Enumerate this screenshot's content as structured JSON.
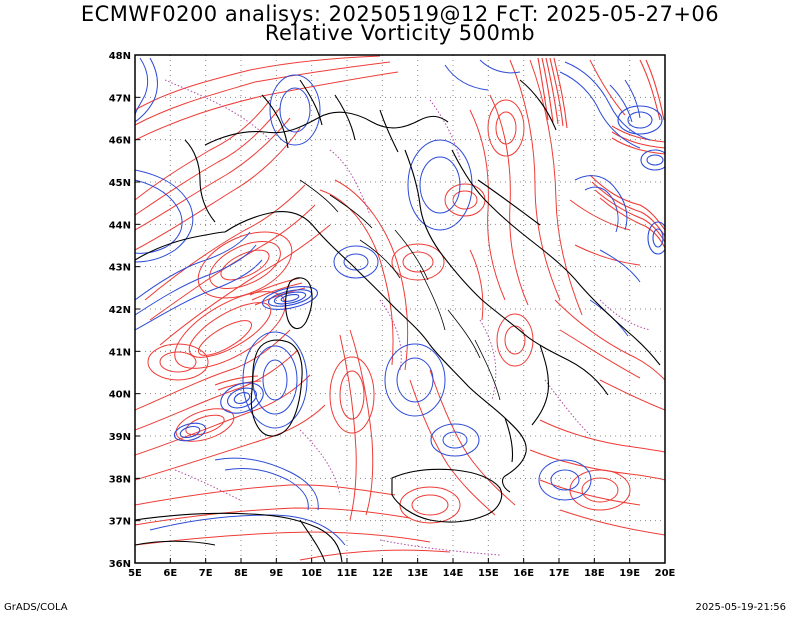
{
  "header": {
    "title_line1": "ECMWF0200 analisys: 20250519@12 FcT: 2025-05-27+06",
    "title_line2": "Relative Vorticity 500mb"
  },
  "axes": {
    "lon_labels": [
      "5E",
      "6E",
      "7E",
      "8E",
      "9E",
      "10E",
      "11E",
      "12E",
      "13E",
      "14E",
      "15E",
      "16E",
      "17E",
      "18E",
      "19E",
      "20E"
    ],
    "lat_labels": [
      "48N",
      "47N",
      "46N",
      "45N",
      "44N",
      "43N",
      "42N",
      "41N",
      "40N",
      "39N",
      "38N",
      "37N",
      "36N"
    ],
    "lon_range": [
      5,
      20
    ],
    "lat_range": [
      36,
      48
    ]
  },
  "colors": {
    "positive_contour": "#ef3b36",
    "negative_contour": "#2c4bd8",
    "zero_contour": "#b14aa6",
    "coastline": "#000000",
    "grid": "#888888"
  },
  "footer": {
    "left": "GrADS/COLA",
    "right": "2025-05-19-21:56"
  }
}
